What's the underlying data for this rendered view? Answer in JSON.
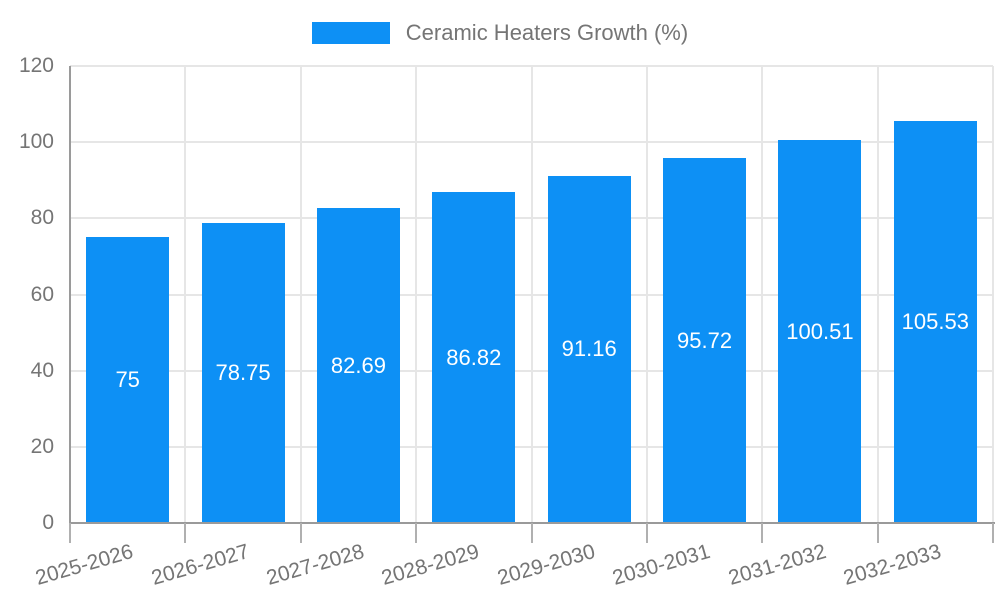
{
  "chart_data": {
    "type": "bar",
    "title": "",
    "legend": "Ceramic Heaters Growth (%)",
    "legend_position": "top-center",
    "categories": [
      "2025-2026",
      "2026-2027",
      "2027-2028",
      "2028-2029",
      "2029-2030",
      "2030-2031",
      "2031-2032",
      "2032-2033"
    ],
    "values": [
      75,
      78.75,
      82.69,
      86.82,
      91.16,
      95.72,
      100.51,
      105.53
    ],
    "value_labels": [
      "75",
      "78.75",
      "82.69",
      "86.82",
      "91.16",
      "95.72",
      "100.51",
      "105.53"
    ],
    "xlabel": "",
    "ylabel": "",
    "ylim": [
      0,
      120
    ],
    "yticks": [
      0,
      20,
      40,
      60,
      80,
      100,
      120
    ],
    "grid": true,
    "x_label_rotation_deg": -16,
    "colors": {
      "bar": "#0d90f5",
      "value_label_text": "#ffffff",
      "axis_text": "#757575",
      "gridline": "#e6e6e6",
      "axis_line": "#9a9a9a",
      "tick": "#b0b0b0",
      "background": "#ffffff"
    }
  }
}
